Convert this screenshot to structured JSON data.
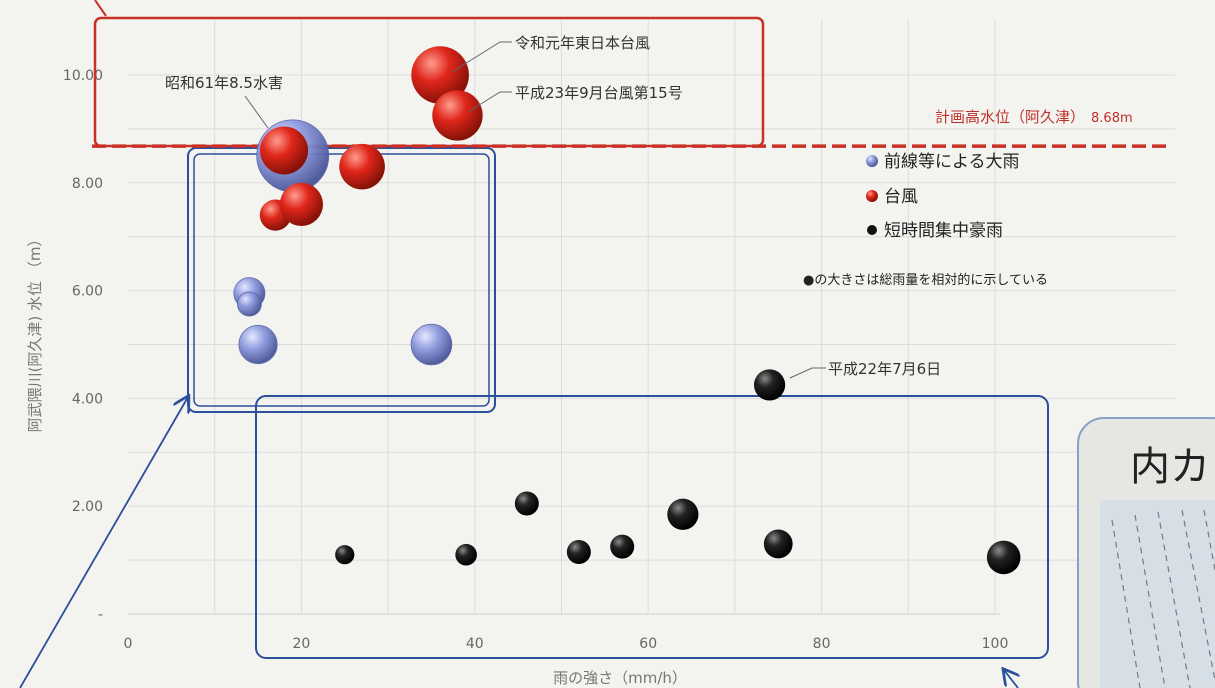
{
  "chart_data": {
    "type": "scatter",
    "xlabel": "雨の強さ（mm/h）",
    "ylabel": "阿武隈川(阿久津) 水位 （m）",
    "xlim": [
      0,
      100
    ],
    "ylim": [
      0,
      10
    ],
    "x_ticks": [
      "0",
      "20",
      "40",
      "60",
      "80",
      "100"
    ],
    "y_ticks": [
      "-",
      "2.00",
      "4.00",
      "6.00",
      "8.00",
      "10.00"
    ],
    "series": [
      {
        "name": "前線等による大雨",
        "color": "#8a96d8",
        "points": [
          {
            "x": 19,
            "y": 8.5,
            "size": 3.0
          },
          {
            "x": 14,
            "y": 5.95,
            "size": 1.3
          },
          {
            "x": 14,
            "y": 5.75,
            "size": 1.0
          },
          {
            "x": 15,
            "y": 5.0,
            "size": 1.6
          },
          {
            "x": 35,
            "y": 5.0,
            "size": 1.7
          }
        ]
      },
      {
        "name": "台風",
        "color": "#d62a1e",
        "points": [
          {
            "x": 36,
            "y": 10.0,
            "size": 2.4
          },
          {
            "x": 38,
            "y": 9.25,
            "size": 2.1
          },
          {
            "x": 18,
            "y": 8.6,
            "size": 2.0
          },
          {
            "x": 27,
            "y": 8.3,
            "size": 1.9
          },
          {
            "x": 17,
            "y": 7.4,
            "size": 1.3
          },
          {
            "x": 20,
            "y": 7.6,
            "size": 1.8
          }
        ]
      },
      {
        "name": "短時間集中豪雨",
        "color": "#111111",
        "points": [
          {
            "x": 74,
            "y": 4.25,
            "size": 1.3
          },
          {
            "x": 25,
            "y": 1.1,
            "size": 0.8
          },
          {
            "x": 39,
            "y": 1.1,
            "size": 0.9
          },
          {
            "x": 46,
            "y": 2.05,
            "size": 1.0
          },
          {
            "x": 52,
            "y": 1.15,
            "size": 1.0
          },
          {
            "x": 57,
            "y": 1.25,
            "size": 1.0
          },
          {
            "x": 64,
            "y": 1.85,
            "size": 1.3
          },
          {
            "x": 75,
            "y": 1.3,
            "size": 1.2
          },
          {
            "x": 101,
            "y": 1.05,
            "size": 1.4
          }
        ]
      }
    ],
    "plan_line": {
      "y": 8.68,
      "label": "計画高水位（阿久津）",
      "value_label": "8.68m"
    },
    "annotations": [
      {
        "text": "令和元年東日本台風"
      },
      {
        "text": "昭和61年8.5水害"
      },
      {
        "text": "平成23年9月台風第15号"
      },
      {
        "text": "平成22年7月6日"
      }
    ],
    "legend": {
      "position": "right",
      "items": [
        "前線等による大雨",
        "台風",
        "短時間集中豪雨"
      ],
      "note": "●の大きさは総雨量を相対的に示している"
    },
    "grid": true
  },
  "inset": {
    "title": "内カ"
  }
}
